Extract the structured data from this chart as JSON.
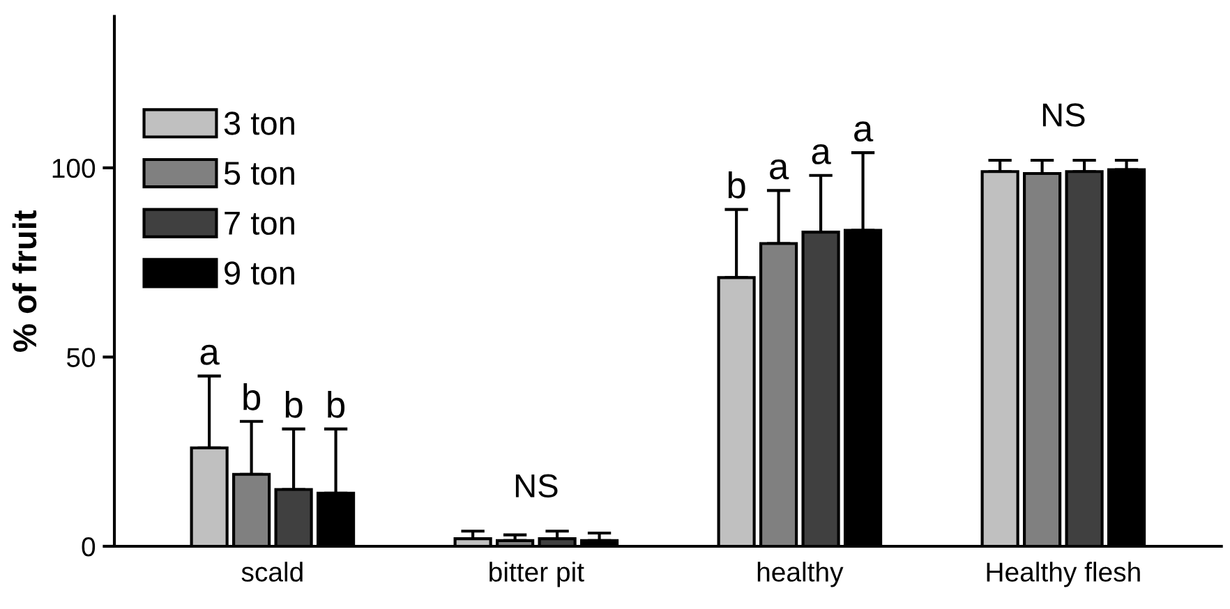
{
  "chart_data": {
    "type": "bar",
    "ylabel": "% of fruit",
    "categories": [
      "scald",
      "bitter pit",
      "healthy",
      "Healthy flesh"
    ],
    "series": [
      {
        "name": "3 ton",
        "color": "#c0c0c0",
        "values": [
          26,
          2,
          71,
          99
        ],
        "errors": [
          [
            26,
            45
          ],
          [
            2,
            4
          ],
          [
            71,
            89
          ],
          [
            99,
            102
          ]
        ],
        "value_labels": [
          "a",
          null,
          "b",
          null
        ]
      },
      {
        "name": "5 ton",
        "color": "#808080",
        "values": [
          19,
          1.5,
          80,
          98.5
        ],
        "errors": [
          [
            19,
            33
          ],
          [
            1.5,
            3
          ],
          [
            80,
            94
          ],
          [
            98.5,
            102
          ]
        ],
        "value_labels": [
          "b",
          null,
          "a",
          null
        ]
      },
      {
        "name": "7 ton",
        "color": "#404040",
        "values": [
          15,
          2,
          83,
          99
        ],
        "errors": [
          [
            15,
            31
          ],
          [
            2,
            4
          ],
          [
            83,
            98
          ],
          [
            99,
            102
          ]
        ],
        "value_labels": [
          "b",
          null,
          "a",
          null
        ]
      },
      {
        "name": "9 ton",
        "color": "#000000",
        "values": [
          14,
          1.5,
          83.5,
          99.5
        ],
        "errors": [
          [
            14,
            31
          ],
          [
            1.5,
            3.5
          ],
          [
            83.5,
            104
          ],
          [
            99.5,
            102
          ]
        ],
        "value_labels": [
          "b",
          null,
          "a",
          null
        ]
      }
    ],
    "annotations": [
      "NS",
      "NS"
    ],
    "ylim": [
      0,
      140
    ],
    "yticks": [
      0,
      50,
      100
    ],
    "grid": false,
    "legend": "top left"
  }
}
